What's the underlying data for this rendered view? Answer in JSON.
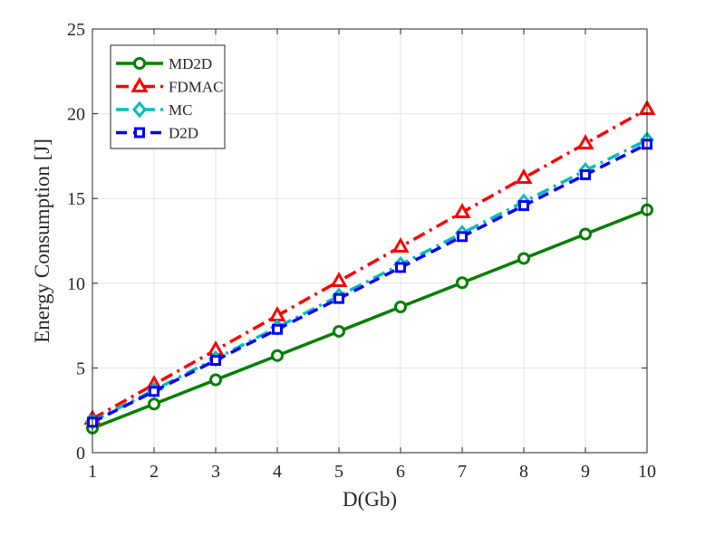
{
  "chart_data": {
    "type": "line",
    "title": "",
    "xlabel": "D(Gb)",
    "ylabel": "Energy Consumption [J]",
    "xlim": [
      1,
      10
    ],
    "ylim": [
      0,
      25
    ],
    "grid": true,
    "legend_position": "top-left",
    "x": [
      1,
      2,
      3,
      4,
      5,
      6,
      7,
      8,
      9,
      10
    ],
    "x_ticks": [
      "1",
      "2",
      "3",
      "4",
      "5",
      "6",
      "7",
      "8",
      "9",
      "10"
    ],
    "y_ticks": [
      "0",
      "5",
      "10",
      "15",
      "20",
      "25"
    ],
    "series": [
      {
        "name": "MD2D",
        "color": "#008000",
        "marker": "circle",
        "line_style": "solid",
        "values": [
          1.45,
          2.87,
          4.3,
          5.73,
          7.16,
          8.6,
          10.03,
          11.46,
          12.9,
          14.33
        ]
      },
      {
        "name": "FDMAC",
        "color": "#ff0000",
        "marker": "triangle",
        "line_style": "dash-dot",
        "values": [
          2.0,
          4.03,
          6.06,
          8.09,
          10.12,
          12.15,
          14.18,
          16.21,
          18.24,
          20.27
        ]
      },
      {
        "name": "MC",
        "color": "#00bfbf",
        "marker": "diamond",
        "line_style": "dash-dot",
        "values": [
          1.85,
          3.7,
          5.55,
          7.4,
          9.25,
          11.1,
          12.95,
          14.8,
          16.65,
          18.45
        ]
      },
      {
        "name": "D2D",
        "color": "#0000ff",
        "marker": "square",
        "line_style": "dashed",
        "values": [
          1.8,
          3.62,
          5.45,
          7.28,
          9.1,
          10.93,
          12.75,
          14.58,
          16.4,
          18.2
        ]
      }
    ]
  }
}
